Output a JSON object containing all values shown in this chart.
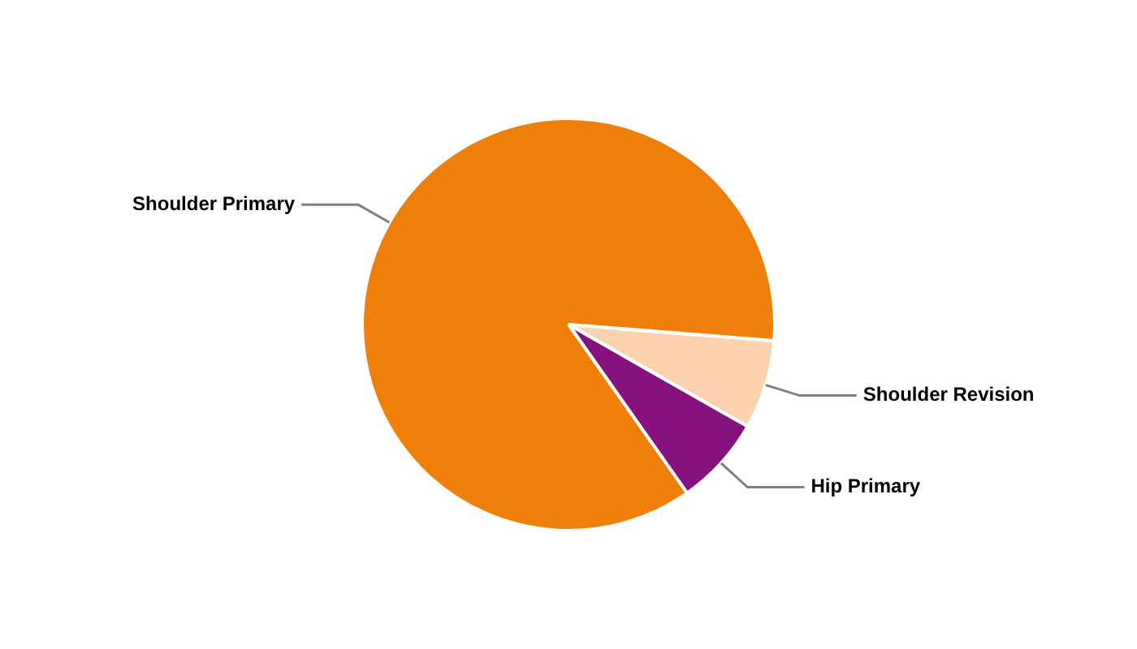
{
  "chart_data": {
    "type": "pie",
    "categories": [
      "Shoulder Revision",
      "Hip Primary",
      "Shoulder Primary"
    ],
    "values": [
      7,
      7,
      86
    ],
    "colors": [
      "#fcd3ae",
      "#86127d",
      "#f07f09"
    ]
  }
}
